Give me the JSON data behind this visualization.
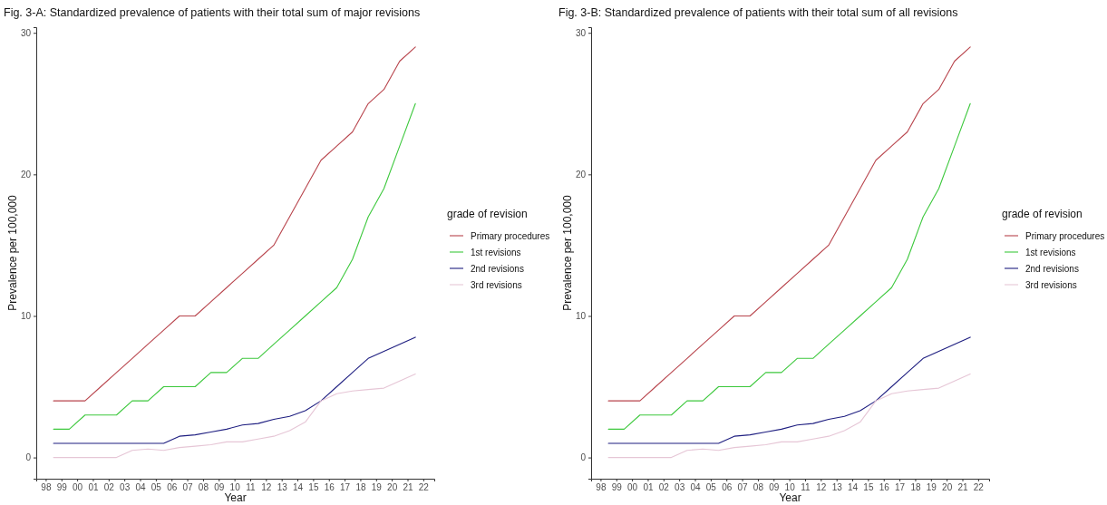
{
  "chart_data": [
    {
      "type": "line",
      "title": "Fig. 3-A: Standardized prevalence of patients with their total sum of major revisions",
      "xlabel": "Year",
      "ylabel": "Prevalence per 100,000",
      "legend_title": "grade of revision",
      "legend": "right",
      "grid": false,
      "line_style": "solid",
      "marker": "none",
      "x": [
        1998.5,
        1999.5,
        2000.5,
        2001.5,
        2002.5,
        2003.5,
        2004.5,
        2005.5,
        2006.5,
        2007.5,
        2008.5,
        2009.5,
        2010.5,
        2011.5,
        2012.5,
        2013.5,
        2014.5,
        2015.5,
        2016.5,
        2017.5,
        2018.5,
        2019.5,
        2020.5,
        2021.5
      ],
      "xlim": [
        1997.4,
        2022.7
      ],
      "xticks": [
        {
          "value": 1998,
          "label": "98"
        },
        {
          "value": 1999,
          "label": "99"
        },
        {
          "value": 2000,
          "label": "00"
        },
        {
          "value": 2001,
          "label": "01"
        },
        {
          "value": 2002,
          "label": "02"
        },
        {
          "value": 2003,
          "label": "03"
        },
        {
          "value": 2004,
          "label": "04"
        },
        {
          "value": 2005,
          "label": "05"
        },
        {
          "value": 2006,
          "label": "06"
        },
        {
          "value": 2007,
          "label": "07"
        },
        {
          "value": 2008,
          "label": "08"
        },
        {
          "value": 2009,
          "label": "09"
        },
        {
          "value": 2010,
          "label": "10"
        },
        {
          "value": 2011,
          "label": "11"
        },
        {
          "value": 2012,
          "label": "12"
        },
        {
          "value": 2013,
          "label": "13"
        },
        {
          "value": 2014,
          "label": "14"
        },
        {
          "value": 2015,
          "label": "15"
        },
        {
          "value": 2016,
          "label": "16"
        },
        {
          "value": 2017,
          "label": "17"
        },
        {
          "value": 2018,
          "label": "18"
        },
        {
          "value": 2019,
          "label": "19"
        },
        {
          "value": 2020,
          "label": "20"
        },
        {
          "value": 2021,
          "label": "21"
        },
        {
          "value": 2022,
          "label": "22"
        }
      ],
      "ylim": [
        -1.5,
        30.4
      ],
      "yticks": [
        0,
        10,
        20,
        30
      ],
      "series": [
        {
          "name": "Primary procedures",
          "color": "#b8444c",
          "values": [
            4,
            4,
            4,
            5,
            6,
            7,
            8,
            9,
            10,
            10,
            11,
            12,
            13,
            14,
            15,
            17,
            19,
            21,
            22,
            23,
            25,
            26,
            28,
            29
          ]
        },
        {
          "name": "1st revisions",
          "color": "#3cc83c",
          "values": [
            2,
            2,
            3,
            3,
            3,
            4,
            4,
            5,
            5,
            5,
            6,
            6,
            7,
            7,
            8,
            9,
            10,
            11,
            12,
            14,
            17,
            19,
            22,
            25
          ]
        },
        {
          "name": "2nd revisions",
          "color": "#1e1e80",
          "values": [
            1,
            1,
            1,
            1,
            1,
            1,
            1,
            1,
            1.5,
            1.6,
            1.8,
            2.0,
            2.3,
            2.4,
            2.7,
            2.9,
            3.3,
            4.0,
            5.0,
            6.0,
            7.0,
            7.5,
            8.0,
            8.5
          ]
        },
        {
          "name": "3rd revisions",
          "color": "#e6c6d6",
          "values": [
            0,
            0,
            0,
            0,
            0,
            0.5,
            0.6,
            0.5,
            0.7,
            0.8,
            0.9,
            1.1,
            1.1,
            1.3,
            1.5,
            1.9,
            2.5,
            4.0,
            4.5,
            4.7,
            4.8,
            4.9,
            5.4,
            5.9
          ]
        }
      ]
    },
    {
      "type": "line",
      "title": "Fig. 3-B: Standardized prevalence of patients with their total sum of all revisions",
      "xlabel": "Year",
      "ylabel": "Prevalence per 100,000",
      "legend_title": "grade of revision",
      "legend": "right",
      "grid": false,
      "line_style": "solid",
      "marker": "none",
      "x": [
        1998.5,
        1999.5,
        2000.5,
        2001.5,
        2002.5,
        2003.5,
        2004.5,
        2005.5,
        2006.5,
        2007.5,
        2008.5,
        2009.5,
        2010.5,
        2011.5,
        2012.5,
        2013.5,
        2014.5,
        2015.5,
        2016.5,
        2017.5,
        2018.5,
        2019.5,
        2020.5,
        2021.5
      ],
      "xlim": [
        1997.4,
        2022.7
      ],
      "xticks": [
        {
          "value": 1998,
          "label": "98"
        },
        {
          "value": 1999,
          "label": "99"
        },
        {
          "value": 2000,
          "label": "00"
        },
        {
          "value": 2001,
          "label": "01"
        },
        {
          "value": 2002,
          "label": "02"
        },
        {
          "value": 2003,
          "label": "03"
        },
        {
          "value": 2004,
          "label": "04"
        },
        {
          "value": 2005,
          "label": "05"
        },
        {
          "value": 2006,
          "label": "06"
        },
        {
          "value": 2007,
          "label": "07"
        },
        {
          "value": 2008,
          "label": "08"
        },
        {
          "value": 2009,
          "label": "09"
        },
        {
          "value": 2010,
          "label": "10"
        },
        {
          "value": 2011,
          "label": "11"
        },
        {
          "value": 2012,
          "label": "12"
        },
        {
          "value": 2013,
          "label": "13"
        },
        {
          "value": 2014,
          "label": "14"
        },
        {
          "value": 2015,
          "label": "15"
        },
        {
          "value": 2016,
          "label": "16"
        },
        {
          "value": 2017,
          "label": "17"
        },
        {
          "value": 2018,
          "label": "18"
        },
        {
          "value": 2019,
          "label": "19"
        },
        {
          "value": 2020,
          "label": "20"
        },
        {
          "value": 2021,
          "label": "21"
        },
        {
          "value": 2022,
          "label": "22"
        }
      ],
      "ylim": [
        -1.5,
        30.4
      ],
      "yticks": [
        0,
        10,
        20,
        30
      ],
      "series": [
        {
          "name": "Primary procedures",
          "color": "#b8444c",
          "values": [
            4,
            4,
            4,
            5,
            6,
            7,
            8,
            9,
            10,
            10,
            11,
            12,
            13,
            14,
            15,
            17,
            19,
            21,
            22,
            23,
            25,
            26,
            28,
            29
          ]
        },
        {
          "name": "1st revisions",
          "color": "#3cc83c",
          "values": [
            2,
            2,
            3,
            3,
            3,
            4,
            4,
            5,
            5,
            5,
            6,
            6,
            7,
            7,
            8,
            9,
            10,
            11,
            12,
            14,
            17,
            19,
            22,
            25
          ]
        },
        {
          "name": "2nd revisions",
          "color": "#1e1e80",
          "values": [
            1,
            1,
            1,
            1,
            1,
            1,
            1,
            1,
            1.5,
            1.6,
            1.8,
            2.0,
            2.3,
            2.4,
            2.7,
            2.9,
            3.3,
            4.0,
            5.0,
            6.0,
            7.0,
            7.5,
            8.0,
            8.5
          ]
        },
        {
          "name": "3rd revisions",
          "color": "#e6c6d6",
          "values": [
            0,
            0,
            0,
            0,
            0,
            0.5,
            0.6,
            0.5,
            0.7,
            0.8,
            0.9,
            1.1,
            1.1,
            1.3,
            1.5,
            1.9,
            2.5,
            4.0,
            4.5,
            4.7,
            4.8,
            4.9,
            5.4,
            5.9
          ]
        }
      ]
    }
  ]
}
